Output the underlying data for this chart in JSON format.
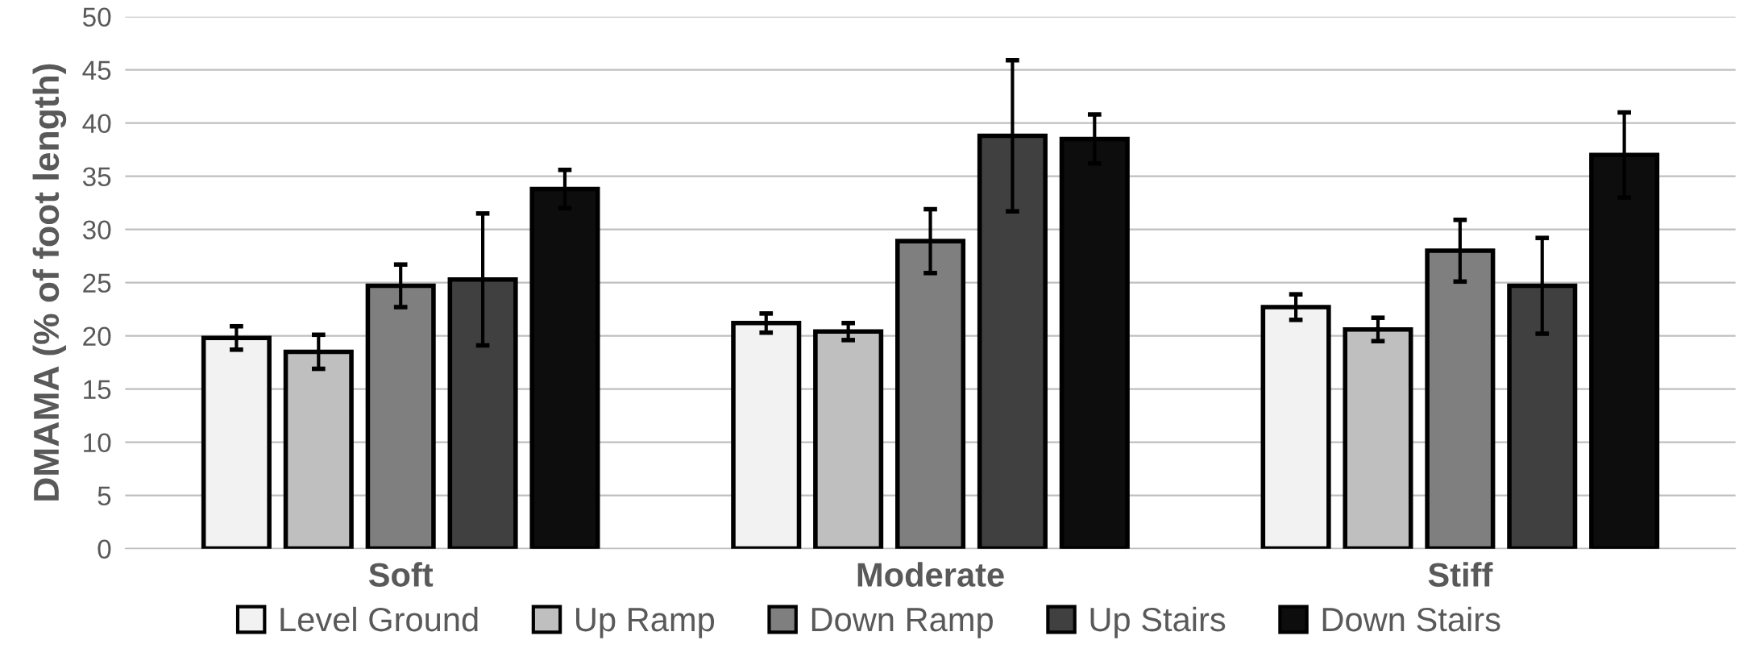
{
  "chart_data": {
    "type": "bar",
    "ylabel": "DMAMA (% of foot length)",
    "categories": [
      "Soft",
      "Moderate",
      "Stiff"
    ],
    "series": [
      {
        "name": "Level Ground",
        "color": "#f2f2f2",
        "values": [
          19.8,
          21.2,
          22.7
        ],
        "errors": [
          1.1,
          0.9,
          1.2
        ]
      },
      {
        "name": "Up Ramp",
        "color": "#bfbfbf",
        "values": [
          18.5,
          20.4,
          20.6
        ],
        "errors": [
          1.6,
          0.8,
          1.1
        ]
      },
      {
        "name": "Down Ramp",
        "color": "#7f7f7f",
        "values": [
          24.7,
          28.9,
          28.0
        ],
        "errors": [
          2.0,
          3.0,
          2.9
        ]
      },
      {
        "name": "Up Stairs",
        "color": "#404040",
        "values": [
          25.3,
          38.8,
          24.7
        ],
        "errors": [
          6.2,
          7.1,
          4.5
        ]
      },
      {
        "name": "Down Stairs",
        "color": "#0d0d0d",
        "values": [
          33.8,
          38.5,
          37.0
        ],
        "errors": [
          1.8,
          2.3,
          4.0
        ]
      }
    ],
    "ylim": [
      0,
      50
    ],
    "yticks": [
      0,
      5,
      10,
      15,
      20,
      25,
      30,
      35,
      40,
      45,
      50
    ],
    "grid": "y",
    "legend": "bottom"
  }
}
